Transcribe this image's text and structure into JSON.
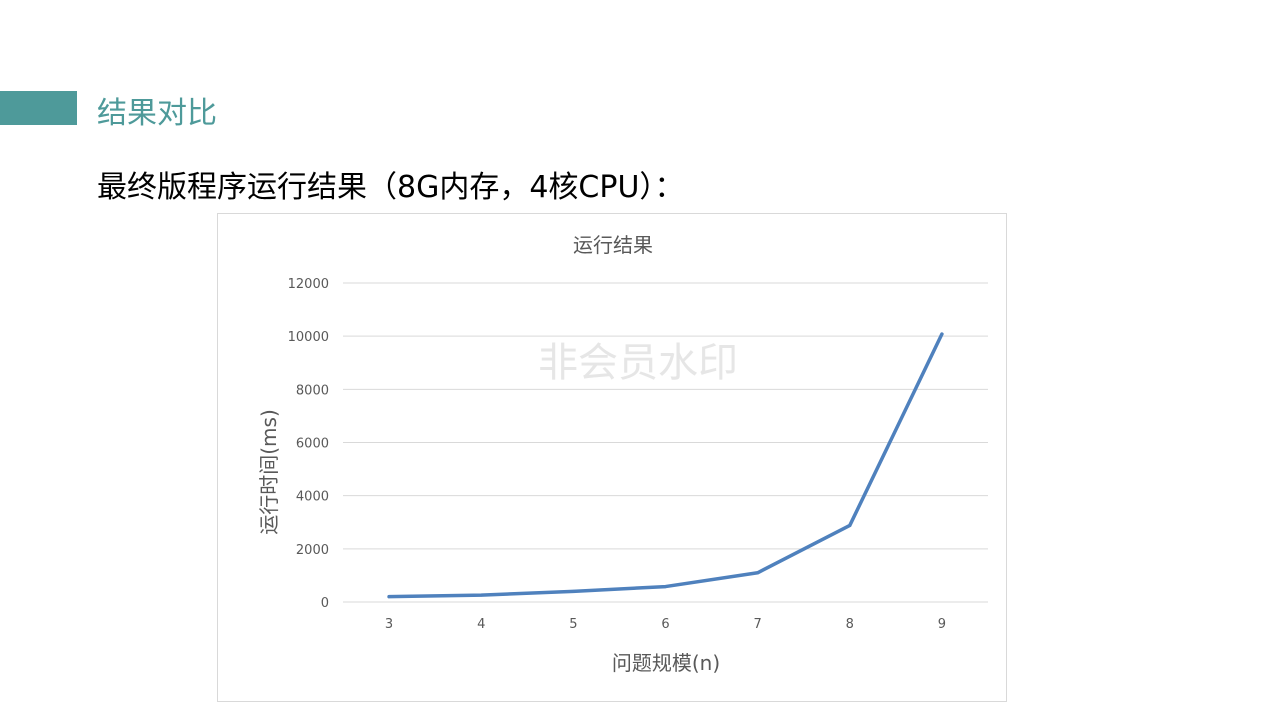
{
  "header": {
    "section_title": "结果对比",
    "subtitle": "最终版程序运行结果（8G内存，4核CPU）："
  },
  "colors": {
    "accent": "#4e9a9a",
    "series_line": "#4f81bd",
    "grid": "#d9d9d9",
    "axis_text": "#595959"
  },
  "watermark": "非会员水印",
  "chart_data": {
    "type": "line",
    "title": "运行结果",
    "xlabel": "问题规模(n)",
    "ylabel": "运行时间(ms)",
    "categories": [
      "3",
      "4",
      "5",
      "6",
      "7",
      "8",
      "9"
    ],
    "series": [
      {
        "values": [
          200,
          260,
          400,
          580,
          1100,
          2880,
          10080
        ]
      }
    ],
    "ylim": [
      0,
      12000
    ],
    "yticks": [
      "0",
      "2000",
      "4000",
      "6000",
      "8000",
      "10000",
      "12000"
    ],
    "grid": true,
    "legend": "none"
  }
}
